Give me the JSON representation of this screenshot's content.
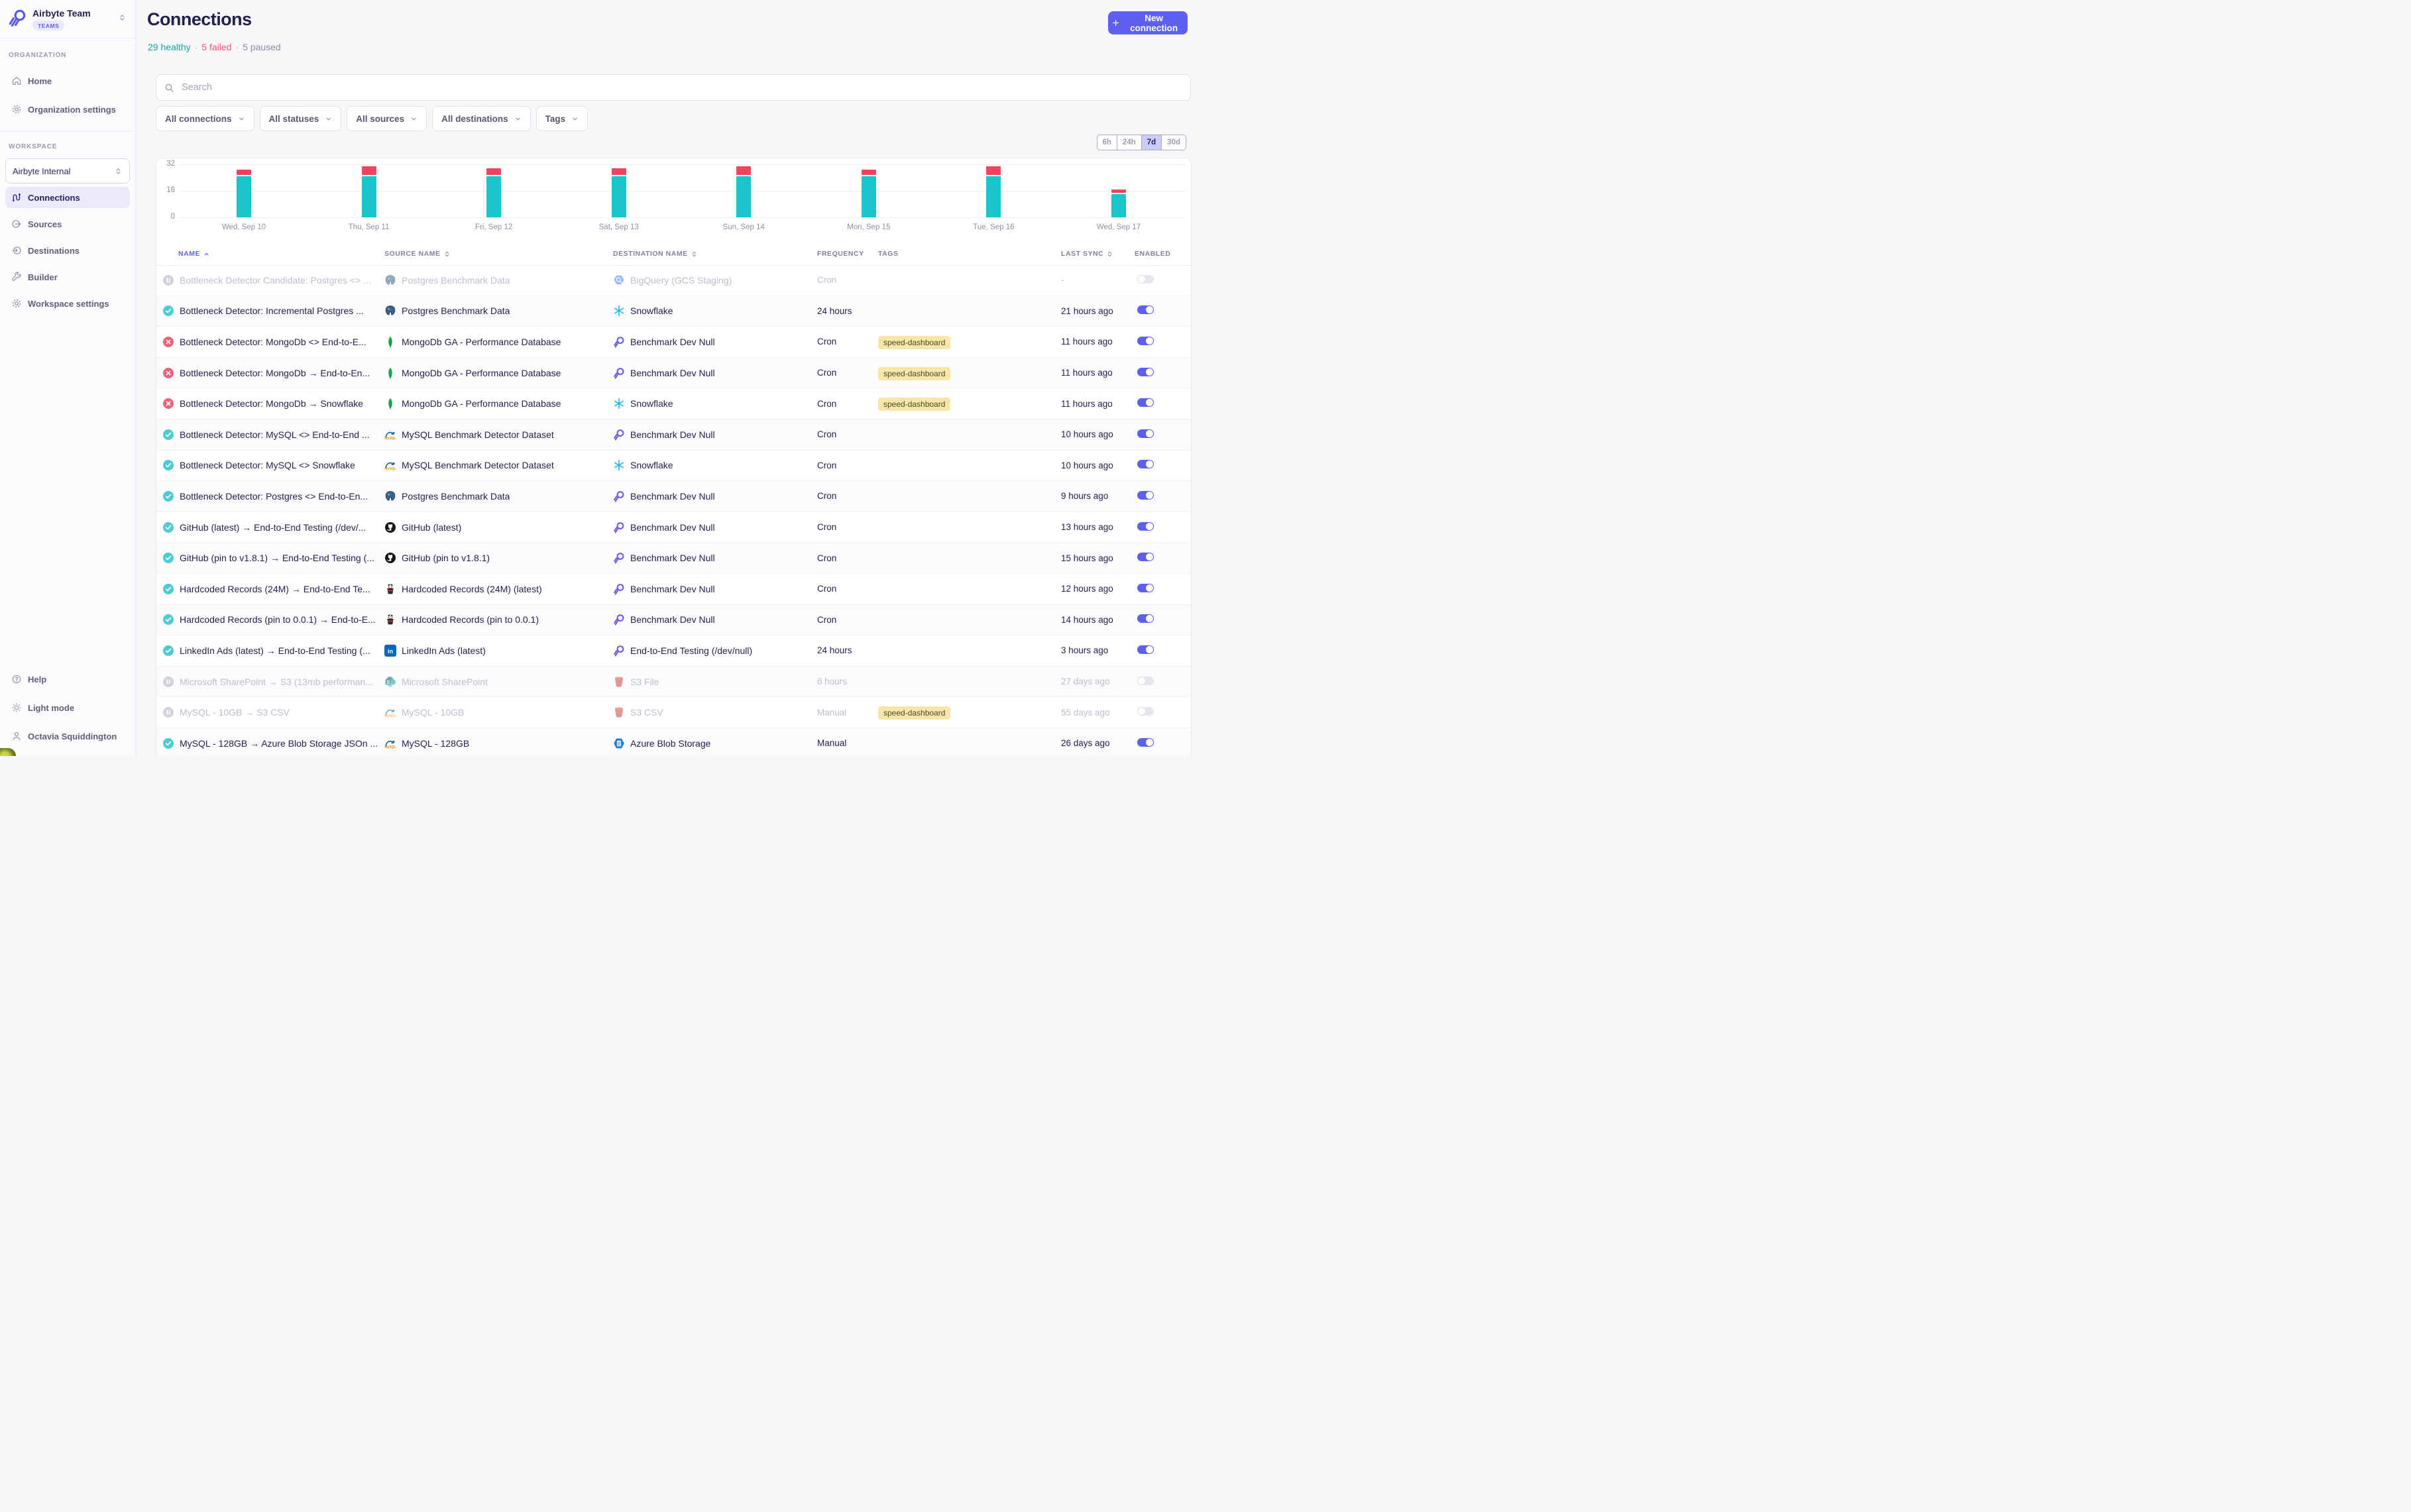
{
  "sidebar": {
    "team_name": "Airbyte Team",
    "team_badge": "TEAMS",
    "organization_label": "ORGANIZATION",
    "workspace_label": "WORKSPACE",
    "organization_items": [
      {
        "label": "Home",
        "icon": "home"
      },
      {
        "label": "Organization settings",
        "icon": "gear"
      }
    ],
    "workspace_selector": "Airbyte Internal",
    "workspace_items": [
      {
        "label": "Connections",
        "icon": "connections",
        "selected": true
      },
      {
        "label": "Sources",
        "icon": "sources"
      },
      {
        "label": "Destinations",
        "icon": "destinations"
      },
      {
        "label": "Builder",
        "icon": "wrench"
      },
      {
        "label": "Workspace settings",
        "icon": "gear"
      }
    ],
    "footer_items": [
      {
        "label": "Help",
        "icon": "help"
      },
      {
        "label": "Light mode",
        "icon": "sun"
      },
      {
        "label": "Octavia Squiddington",
        "icon": "person"
      }
    ]
  },
  "header": {
    "title": "Connections",
    "summary": {
      "healthy": "29 healthy",
      "failed": "5 failed",
      "paused": "5 paused",
      "sep": "·"
    },
    "new_connection_label": "New connection"
  },
  "filters": {
    "search_placeholder": "Search",
    "pills": [
      "All connections",
      "All statuses",
      "All sources",
      "All destinations",
      "Tags"
    ]
  },
  "time_range": {
    "options": [
      "6h",
      "24h",
      "7d",
      "30d"
    ],
    "selected": "7d"
  },
  "chart_data": {
    "type": "bar",
    "stacked": true,
    "categories": [
      "Wed, Sep 10",
      "Thu, Sep 11",
      "Fri, Sep 12",
      "Sat, Sep 13",
      "Sun, Sep 14",
      "Mon, Sep 15",
      "Tue, Sep 16",
      "Wed, Sep 17"
    ],
    "series": [
      {
        "name": "successful syncs",
        "color": "#19C4CC",
        "values": [
          25,
          25,
          25,
          25,
          25,
          25,
          25,
          14
        ]
      },
      {
        "name": "failed syncs",
        "color": "#F4415C",
        "values": [
          3,
          5,
          4,
          4,
          5,
          3,
          5,
          2
        ]
      }
    ],
    "ylabel": "",
    "xlabel": "",
    "ylim": [
      0,
      32
    ],
    "yticks": [
      32,
      16,
      0
    ],
    "grid": true,
    "legend": "none"
  },
  "table": {
    "columns": [
      {
        "label": "NAME",
        "sort": "asc",
        "active": true
      },
      {
        "label": "SOURCE NAME",
        "sort": "both"
      },
      {
        "label": "DESTINATION NAME",
        "sort": "both"
      },
      {
        "label": "FREQUENCY",
        "sort": "none"
      },
      {
        "label": "TAGS",
        "sort": "none"
      },
      {
        "label": "LAST SYNC",
        "sort": "both"
      },
      {
        "label": "ENABLED",
        "sort": "none"
      }
    ],
    "rows": [
      {
        "status": "paused",
        "muted": true,
        "name": "Bottleneck Detector Candidate: Postgres <> ...",
        "source": {
          "label": "Postgres Benchmark Data",
          "icon": "postgres"
        },
        "destination": {
          "label": "BigQuery (GCS Staging)",
          "icon": "bigquery"
        },
        "frequency": "Cron",
        "tags": [],
        "last_sync": "-",
        "enabled": false
      },
      {
        "status": "healthy",
        "muted": false,
        "name": "Bottleneck Detector: Incremental Postgres ...",
        "source": {
          "label": "Postgres Benchmark Data",
          "icon": "postgres"
        },
        "destination": {
          "label": "Snowflake",
          "icon": "snowflake"
        },
        "frequency": "24 hours",
        "tags": [],
        "last_sync": "21 hours ago",
        "enabled": true
      },
      {
        "status": "failed",
        "muted": false,
        "name": "Bottleneck Detector: MongoDb <> End-to-E...",
        "source": {
          "label": "MongoDb GA - Performance Database",
          "icon": "mongodb"
        },
        "destination": {
          "label": "Benchmark Dev Null",
          "icon": "airbyte"
        },
        "frequency": "Cron",
        "tags": [
          "speed-dashboard"
        ],
        "last_sync": "11 hours ago",
        "enabled": true
      },
      {
        "status": "failed",
        "muted": false,
        "name": "Bottleneck Detector: MongoDb → End-to-En...",
        "source": {
          "label": "MongoDb GA - Performance Database",
          "icon": "mongodb"
        },
        "destination": {
          "label": "Benchmark Dev Null",
          "icon": "airbyte"
        },
        "frequency": "Cron",
        "tags": [
          "speed-dashboard"
        ],
        "last_sync": "11 hours ago",
        "enabled": true
      },
      {
        "status": "failed",
        "muted": false,
        "name": "Bottleneck Detector: MongoDb → Snowflake",
        "source": {
          "label": "MongoDb GA - Performance Database",
          "icon": "mongodb"
        },
        "destination": {
          "label": "Snowflake",
          "icon": "snowflake"
        },
        "frequency": "Cron",
        "tags": [
          "speed-dashboard"
        ],
        "last_sync": "11 hours ago",
        "enabled": true
      },
      {
        "status": "healthy",
        "muted": false,
        "name": "Bottleneck Detector: MySQL <> End-to-End ...",
        "source": {
          "label": "MySQL Benchmark Detector Dataset",
          "icon": "mysql"
        },
        "destination": {
          "label": "Benchmark Dev Null",
          "icon": "airbyte"
        },
        "frequency": "Cron",
        "tags": [],
        "last_sync": "10 hours ago",
        "enabled": true
      },
      {
        "status": "healthy",
        "muted": false,
        "name": "Bottleneck Detector: MySQL <> Snowflake",
        "source": {
          "label": "MySQL Benchmark Detector Dataset",
          "icon": "mysql"
        },
        "destination": {
          "label": "Snowflake",
          "icon": "snowflake"
        },
        "frequency": "Cron",
        "tags": [],
        "last_sync": "10 hours ago",
        "enabled": true
      },
      {
        "status": "healthy",
        "muted": false,
        "name": "Bottleneck Detector: Postgres <> End-to-En...",
        "source": {
          "label": "Postgres Benchmark Data",
          "icon": "postgres"
        },
        "destination": {
          "label": "Benchmark Dev Null",
          "icon": "airbyte"
        },
        "frequency": "Cron",
        "tags": [],
        "last_sync": "9 hours ago",
        "enabled": true
      },
      {
        "status": "healthy",
        "muted": false,
        "name": "GitHub (latest) → End-to-End Testing (/dev/...",
        "source": {
          "label": "GitHub (latest)",
          "icon": "github"
        },
        "destination": {
          "label": "Benchmark Dev Null",
          "icon": "airbyte"
        },
        "frequency": "Cron",
        "tags": [],
        "last_sync": "13 hours ago",
        "enabled": true
      },
      {
        "status": "healthy",
        "muted": false,
        "name": "GitHub (pin to v1.8.1) → End-to-End Testing (...",
        "source": {
          "label": "GitHub (pin to v1.8.1)",
          "icon": "github"
        },
        "destination": {
          "label": "Benchmark Dev Null",
          "icon": "airbyte"
        },
        "frequency": "Cron",
        "tags": [],
        "last_sync": "15 hours ago",
        "enabled": true
      },
      {
        "status": "healthy",
        "muted": false,
        "name": "Hardcoded Records (24M) → End-to-End Te...",
        "source": {
          "label": "Hardcoded Records (24M) (latest)",
          "icon": "hardcoded"
        },
        "destination": {
          "label": "Benchmark Dev Null",
          "icon": "airbyte"
        },
        "frequency": "Cron",
        "tags": [],
        "last_sync": "12 hours ago",
        "enabled": true
      },
      {
        "status": "healthy",
        "muted": false,
        "name": "Hardcoded Records (pin to 0.0.1) → End-to-E...",
        "source": {
          "label": "Hardcoded Records (pin to 0.0.1)",
          "icon": "hardcoded"
        },
        "destination": {
          "label": "Benchmark Dev Null",
          "icon": "airbyte"
        },
        "frequency": "Cron",
        "tags": [],
        "last_sync": "14 hours ago",
        "enabled": true
      },
      {
        "status": "healthy",
        "muted": false,
        "name": "LinkedIn Ads (latest) → End-to-End Testing (...",
        "source": {
          "label": "LinkedIn Ads (latest)",
          "icon": "linkedin"
        },
        "destination": {
          "label": "End-to-End Testing (/dev/null)",
          "icon": "airbyte"
        },
        "frequency": "24 hours",
        "tags": [],
        "last_sync": "3 hours ago",
        "enabled": true
      },
      {
        "status": "paused",
        "muted": true,
        "name": "Microsoft SharePoint → S3 (13mb performan...",
        "source": {
          "label": "Microsoft SharePoint",
          "icon": "sharepoint"
        },
        "destination": {
          "label": "S3 File",
          "icon": "s3"
        },
        "frequency": "6 hours",
        "tags": [],
        "last_sync": "27 days ago",
        "enabled": false
      },
      {
        "status": "paused",
        "muted": true,
        "name": "MySQL - 10GB → S3 CSV",
        "source": {
          "label": "MySQL - 10GB",
          "icon": "mysql"
        },
        "destination": {
          "label": "S3 CSV",
          "icon": "s3"
        },
        "frequency": "Manual",
        "tags": [
          "speed-dashboard"
        ],
        "last_sync": "55 days ago",
        "enabled": false
      },
      {
        "status": "healthy",
        "muted": false,
        "name": "MySQL - 128GB → Azure Blob Storage JSOn ...",
        "source": {
          "label": "MySQL - 128GB",
          "icon": "mysql"
        },
        "destination": {
          "label": "Azure Blob Storage",
          "icon": "azure"
        },
        "frequency": "Manual",
        "tags": [],
        "last_sync": "26 days ago",
        "enabled": true
      }
    ]
  },
  "colors": {
    "accent": "#5D5FEF",
    "healthy_icon": "#4FCBD2",
    "failed_icon": "#F2607C",
    "paused_icon": "#B0B0C2",
    "chart_success": "#19C4CC",
    "chart_failed": "#F4415C",
    "tag_bg": "#F6E7A9",
    "dark_text": "#23214e"
  }
}
